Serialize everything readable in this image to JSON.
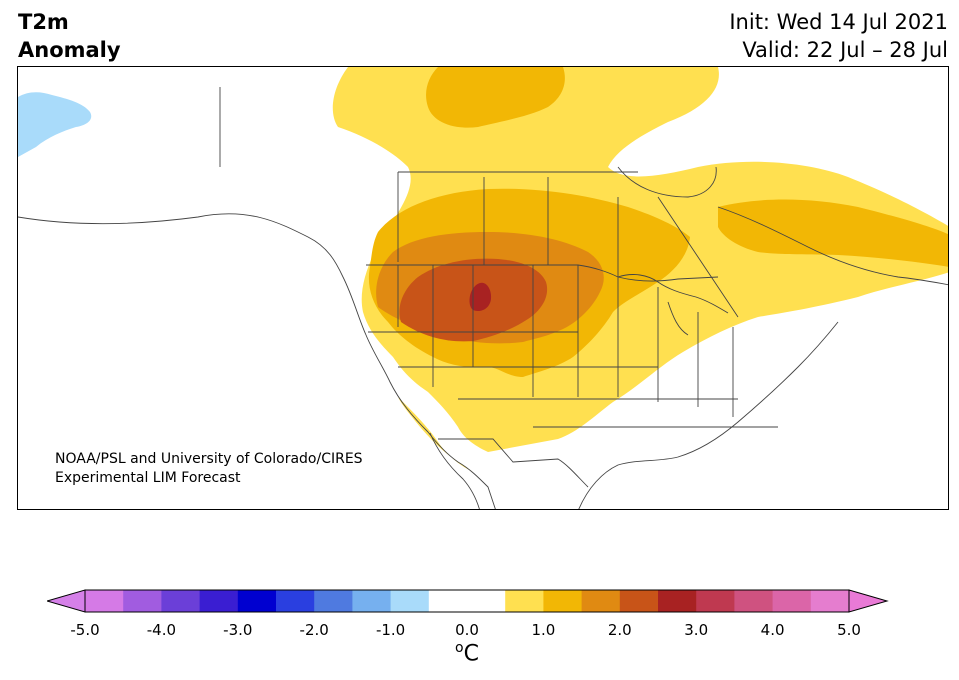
{
  "title": {
    "line1": "T2m",
    "line2": "Anomaly"
  },
  "header": {
    "init": "Init: Wed 14 Jul 2021",
    "valid": "Valid: 22 Jul – 28 Jul"
  },
  "credit": {
    "line1": "NOAA/PSL and University of Colorado/CIRES",
    "line2": "Experimental LIM Forecast"
  },
  "colorbar": {
    "unit_prefix": "o",
    "unit_main": "C",
    "min": -5.0,
    "max": 5.0,
    "ticks": [
      "-5.0",
      "-4.0",
      "-3.0",
      "-2.0",
      "-1.0",
      "0.0",
      "1.0",
      "2.0",
      "3.0",
      "4.0",
      "5.0"
    ],
    "under_color": "#d580e8",
    "over_color": "#e97ad6",
    "colors": [
      "#d57ae6",
      "#a15ce0",
      "#6b3fd8",
      "#3a1ed2",
      "#0000d0",
      "#2a3fe0",
      "#4f7ae0",
      "#76b0ef",
      "#a9dbfa",
      "#ffffff",
      "#ffffff",
      "#ffe050",
      "#f2b705",
      "#e08a12",
      "#c85418",
      "#a82222",
      "#bf3950",
      "#cf5280",
      "#db65a8",
      "#e57dcf"
    ]
  },
  "map_colors": {
    "cold1": "#a9dbfa",
    "warm1": "#ffe050",
    "warm2": "#f2b705",
    "warm3": "#e08a12",
    "warm4": "#c85418",
    "warm5": "#a82222"
  }
}
